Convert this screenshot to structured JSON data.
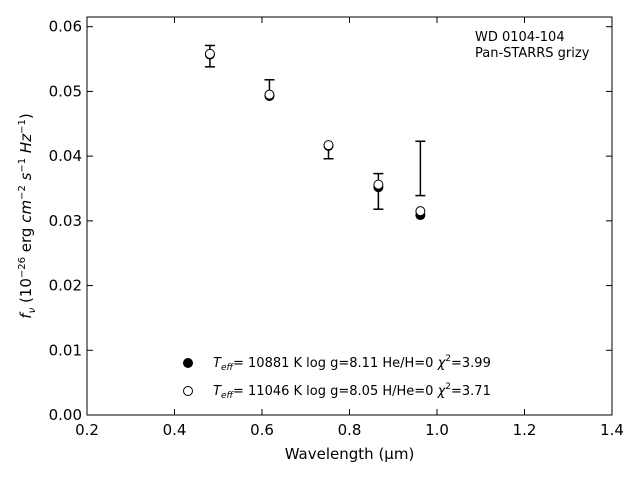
{
  "chart_data": {
    "type": "scatter",
    "title": "",
    "annotation": [
      "WD 0104-104",
      "Pan-STARRS grizy"
    ],
    "xlabel": "Wavelength (μm)",
    "ylabel_parts": {
      "sym": "f",
      "sym_sub": "ν",
      "open": " (10",
      "exp1": "−26",
      "erg": " erg ",
      "cm": "cm",
      "exp2": "−2",
      "s": " s",
      "exp3": "−1",
      "hz": " Hz",
      "exp4": "−1",
      "close": ")"
    },
    "xlim": [
      0.2,
      1.4
    ],
    "ylim": [
      0.0,
      0.0615
    ],
    "xticks": [
      0.2,
      0.4,
      0.6,
      0.8,
      1.0,
      1.2,
      1.4
    ],
    "xtick_labels": [
      "0.2",
      "0.4",
      "0.6",
      "0.8",
      "1.0",
      "1.2",
      "1.4"
    ],
    "yticks": [
      0.0,
      0.01,
      0.02,
      0.03,
      0.04,
      0.05,
      0.06
    ],
    "ytick_labels": [
      "0.00",
      "0.01",
      "0.02",
      "0.03",
      "0.04",
      "0.05",
      "0.06"
    ],
    "grid": false,
    "observed": {
      "x": [
        0.481,
        0.617,
        0.752,
        0.866,
        0.962
      ],
      "y_low": [
        0.0538,
        0.0494,
        0.0396,
        0.0318,
        0.0339
      ],
      "y_high": [
        0.0571,
        0.0518,
        0.0417,
        0.0373,
        0.0423
      ]
    },
    "series": [
      {
        "marker": "filled",
        "x": [
          0.481,
          0.617,
          0.752,
          0.866,
          0.962
        ],
        "y": [
          0.0557,
          0.0493,
          0.0416,
          0.0352,
          0.0309
        ],
        "label_parts": {
          "pre": "T",
          "sub": "eff",
          "mid": "= 10881 K  log g=8.11  He/H=0  ",
          "chi": "χ",
          "sup": "2",
          "post": "=3.99"
        }
      },
      {
        "marker": "open",
        "x": [
          0.481,
          0.617,
          0.752,
          0.866,
          0.962
        ],
        "y": [
          0.0558,
          0.0495,
          0.0417,
          0.0356,
          0.0315
        ],
        "label_parts": {
          "pre": "T",
          "sub": "eff",
          "mid": "= 11046 K  log g=8.05  H/He=0  ",
          "chi": "χ",
          "sup": "2",
          "post": "=3.71"
        }
      }
    ],
    "legend_position": "lower-center"
  }
}
